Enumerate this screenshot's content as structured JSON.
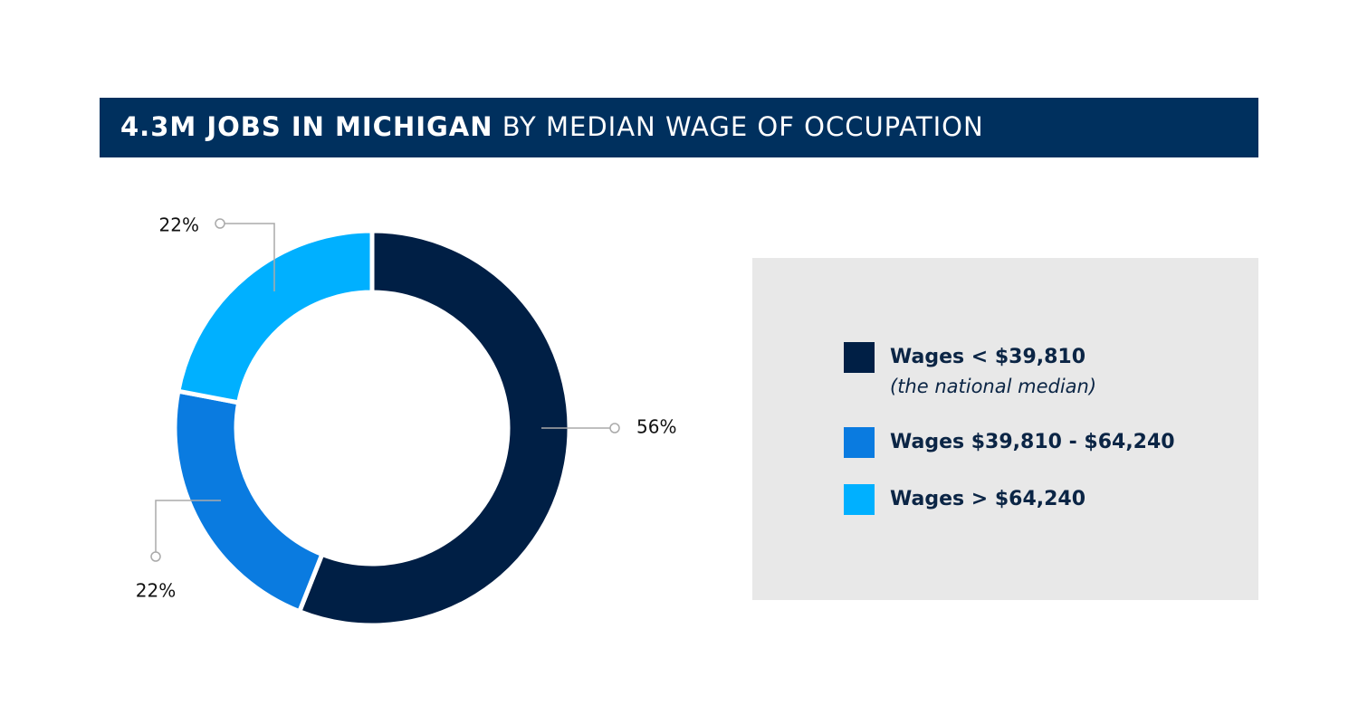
{
  "chart_data": {
    "type": "pie",
    "title": {
      "emphasis": "4.3M JOBS IN MICHIGAN",
      "rest": "BY MEDIAN WAGE OF OCCUPATION"
    },
    "categories": [
      "Wages < $39,810",
      "Wages $39,810 - $64,240",
      "Wages > $64,240"
    ],
    "category_notes": [
      "(the national median)",
      null,
      null
    ],
    "values": [
      56,
      22,
      22
    ],
    "value_labels": [
      "56%",
      "22%",
      "22%"
    ],
    "colors": [
      "#001f45",
      "#0a7be0",
      "#00b0ff"
    ],
    "donut": true
  }
}
